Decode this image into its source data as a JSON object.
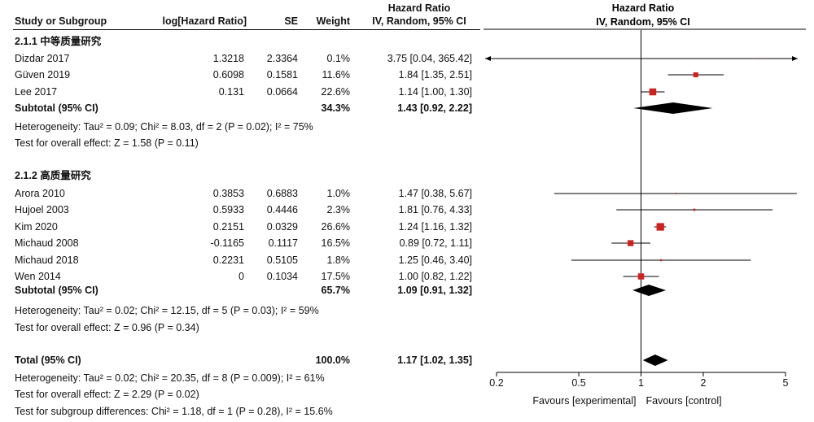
{
  "headers": {
    "study": "Study or Subgroup",
    "loghr": "log[Hazard Ratio]",
    "se": "SE",
    "weight": "Weight",
    "hr_title": "Hazard Ratio",
    "hr_method": "IV, Random, 95% CI",
    "plot_title": "Hazard Ratio",
    "plot_method": "IV, Random, 95% CI"
  },
  "groups": [
    {
      "title": "2.1.1 中等质量研究",
      "studies": [
        {
          "name": "Dizdar 2017",
          "loghr": "1.3218",
          "se": "2.3364",
          "weight": "0.1%",
          "ci_text": "3.75 [0.04, 365.42]",
          "hr": 3.75,
          "lo": 0.04,
          "hi": 365.42,
          "w": 0.1
        },
        {
          "name": "Güven 2019",
          "loghr": "0.6098",
          "se": "0.1581",
          "weight": "11.6%",
          "ci_text": "1.84 [1.35, 2.51]",
          "hr": 1.84,
          "lo": 1.35,
          "hi": 2.51,
          "w": 11.6
        },
        {
          "name": "Lee 2017",
          "loghr": "0.131",
          "se": "0.0664",
          "weight": "22.6%",
          "ci_text": "1.14 [1.00, 1.30]",
          "hr": 1.14,
          "lo": 1.0,
          "hi": 1.3,
          "w": 22.6
        }
      ],
      "subtotal": {
        "label": "Subtotal (95% CI)",
        "weight": "34.3%",
        "ci_text": "1.43 [0.92, 2.22]",
        "hr": 1.43,
        "lo": 0.92,
        "hi": 2.22
      },
      "heterogeneity": "Heterogeneity: Tau² = 0.09; Chi² = 8.03, df = 2 (P = 0.02); I² = 75%",
      "overall": "Test for overall effect: Z = 1.58 (P = 0.11)"
    },
    {
      "title": "2.1.2 高质量研究",
      "studies": [
        {
          "name": "Arora 2010",
          "loghr": "0.3853",
          "se": "0.6883",
          "weight": "1.0%",
          "ci_text": "1.47 [0.38, 5.67]",
          "hr": 1.47,
          "lo": 0.38,
          "hi": 5.67,
          "w": 1.0
        },
        {
          "name": "Hujoel 2003",
          "loghr": "0.5933",
          "se": "0.4446",
          "weight": "2.3%",
          "ci_text": "1.81 [0.76, 4.33]",
          "hr": 1.81,
          "lo": 0.76,
          "hi": 4.33,
          "w": 2.3
        },
        {
          "name": "Kim 2020",
          "loghr": "0.2151",
          "se": "0.0329",
          "weight": "26.6%",
          "ci_text": "1.24 [1.16, 1.32]",
          "hr": 1.24,
          "lo": 1.16,
          "hi": 1.32,
          "w": 26.6
        },
        {
          "name": "Michaud 2008",
          "loghr": "-0.1165",
          "se": "0.1117",
          "weight": "16.5%",
          "ci_text": "0.89 [0.72, 1.11]",
          "hr": 0.89,
          "lo": 0.72,
          "hi": 1.11,
          "w": 16.5
        },
        {
          "name": "Michaud 2018",
          "loghr": "0.2231",
          "se": "0.5105",
          "weight": "1.8%",
          "ci_text": "1.25 [0.46, 3.40]",
          "hr": 1.25,
          "lo": 0.46,
          "hi": 3.4,
          "w": 1.8
        },
        {
          "name": "Wen 2014",
          "loghr": "0",
          "se": "0.1034",
          "weight": "17.5%",
          "ci_text": "1.00 [0.82, 1.22]",
          "hr": 1.0,
          "lo": 0.82,
          "hi": 1.22,
          "w": 17.5
        }
      ],
      "subtotal": {
        "label": "Subtotal (95% CI)",
        "weight": "65.7%",
        "ci_text": "1.09 [0.91, 1.32]",
        "hr": 1.09,
        "lo": 0.91,
        "hi": 1.32
      },
      "heterogeneity": "Heterogeneity: Tau² = 0.02; Chi² = 12.15, df = 5 (P = 0.03); I² = 59%",
      "overall": "Test for overall effect: Z = 0.96 (P = 0.34)"
    }
  ],
  "total": {
    "label": "Total (95% CI)",
    "weight": "100.0%",
    "ci_text": "1.17 [1.02, 1.35]",
    "hr": 1.17,
    "lo": 1.02,
    "hi": 1.35,
    "heterogeneity": "Heterogeneity: Tau² = 0.02; Chi² = 20.35, df = 8 (P = 0.009); I² = 61%",
    "overall": "Test for overall effect: Z = 2.29 (P = 0.02)",
    "subgroup": "Test for subgroup differences: Chi² = 1.18, df = 1 (P = 0.28), I² = 15.6%"
  },
  "chart_data": {
    "type": "scatter",
    "scale": "log",
    "xlim": [
      0.2,
      5
    ],
    "ticks": [
      0.2,
      0.5,
      1,
      2,
      5
    ],
    "tick_labels": [
      "0.2",
      "0.5",
      "1",
      "2",
      "5"
    ],
    "reference_line": 1,
    "favours_left": "Favours [experimental]",
    "favours_right": "Favours [control]",
    "colors": {
      "study_marker": "#cc2222",
      "diamond": "#000000",
      "line": "#000000"
    }
  }
}
